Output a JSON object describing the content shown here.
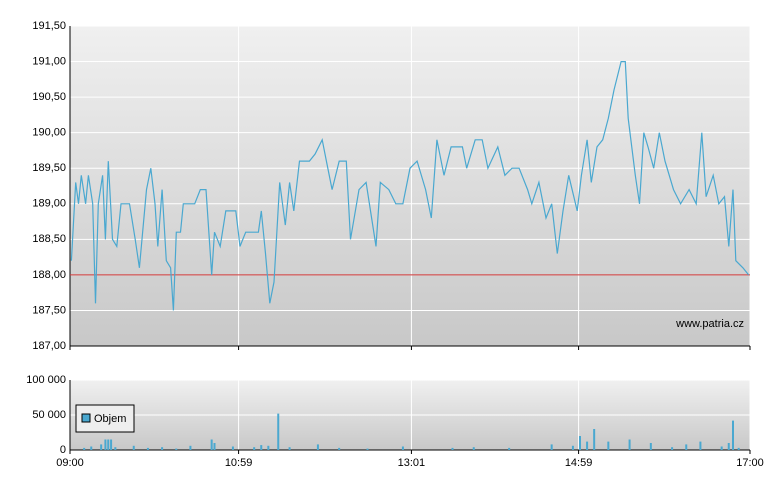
{
  "chart_data": [
    {
      "type": "line",
      "color": "#4aa8d0",
      "x": [
        "09:01",
        "09:04",
        "09:06",
        "09:08",
        "09:11",
        "09:13",
        "09:16",
        "09:18",
        "09:20",
        "09:23",
        "09:25",
        "09:27",
        "09:30",
        "09:33",
        "09:36",
        "09:42",
        "09:46",
        "09:49",
        "09:54",
        "09:57",
        "10:00",
        "10:02",
        "10:05",
        "10:08",
        "10:11",
        "10:13",
        "10:15",
        "10:18",
        "10:20",
        "10:28",
        "10:32",
        "10:36",
        "10:40",
        "10:42",
        "10:46",
        "10:50",
        "10:57",
        "11:00",
        "11:04",
        "11:13",
        "11:15",
        "11:18",
        "11:21",
        "11:24",
        "11:28",
        "11:32",
        "11:35",
        "11:38",
        "11:42",
        "11:49",
        "11:53",
        "11:58",
        "12:01",
        "12:05",
        "12:10",
        "12:15",
        "12:18",
        "12:24",
        "12:29",
        "12:36",
        "12:39",
        "12:45",
        "12:50",
        "12:55",
        "13:00",
        "13:05",
        "13:11",
        "13:15",
        "13:19",
        "13:24",
        "13:29",
        "13:37",
        "13:40",
        "13:46",
        "13:51",
        "13:55",
        "14:02",
        "14:07",
        "14:12",
        "14:17",
        "14:23",
        "14:26",
        "14:31",
        "14:36",
        "14:40",
        "14:44",
        "14:48",
        "14:52",
        "14:58",
        "15:01",
        "15:05",
        "15:08",
        "15:12",
        "15:16",
        "15:20",
        "15:24",
        "15:29",
        "15:32",
        "15:34",
        "15:39",
        "15:42",
        "15:45",
        "15:48",
        "15:52",
        "15:56",
        "16:00",
        "16:06",
        "16:11",
        "16:17",
        "16:22",
        "16:26",
        "16:29",
        "16:34",
        "16:38",
        "16:42",
        "16:45",
        "16:48",
        "16:50",
        "16:55",
        "16:59"
      ],
      "values": [
        188.2,
        189.3,
        189.0,
        189.4,
        189.0,
        189.4,
        189.0,
        187.6,
        189.0,
        189.4,
        188.5,
        189.6,
        188.5,
        188.4,
        189.0,
        189.0,
        188.5,
        188.1,
        189.2,
        189.5,
        189.0,
        188.4,
        189.2,
        188.2,
        188.1,
        187.5,
        188.6,
        188.6,
        189.0,
        189.0,
        189.2,
        189.2,
        188.0,
        188.6,
        188.4,
        188.9,
        188.9,
        188.4,
        188.6,
        188.6,
        188.9,
        188.3,
        187.6,
        187.9,
        189.3,
        188.7,
        189.3,
        188.9,
        189.6,
        189.6,
        189.7,
        189.9,
        189.6,
        189.2,
        189.6,
        189.6,
        188.5,
        189.2,
        189.3,
        188.4,
        189.3,
        189.2,
        189.0,
        189.0,
        189.5,
        189.6,
        189.2,
        188.8,
        189.9,
        189.4,
        189.8,
        189.8,
        189.5,
        189.9,
        189.9,
        189.5,
        189.8,
        189.4,
        189.5,
        189.5,
        189.2,
        189.0,
        189.3,
        188.8,
        189.0,
        188.3,
        188.9,
        189.4,
        188.9,
        189.4,
        189.9,
        189.3,
        189.8,
        189.9,
        190.2,
        190.6,
        191.0,
        191.0,
        190.2,
        189.4,
        189.0,
        190.0,
        189.8,
        189.5,
        190.0,
        189.6,
        189.2,
        189.0,
        189.2,
        189.0,
        190.0,
        189.1,
        189.4,
        189.0,
        189.1,
        188.4,
        189.2,
        188.2,
        188.1,
        188.0
      ],
      "ylim": [
        187,
        191.5
      ],
      "yticks": [
        {
          "value": 187,
          "label": "187,00"
        },
        {
          "value": 187.5,
          "label": "187,50"
        },
        {
          "value": 188,
          "label": "188,00"
        },
        {
          "value": 188.5,
          "label": "188,50"
        },
        {
          "value": 189,
          "label": "189,00"
        },
        {
          "value": 189.5,
          "label": "189,50"
        },
        {
          "value": 190,
          "label": "190,00"
        },
        {
          "value": 190.5,
          "label": "190,50"
        },
        {
          "value": 191,
          "label": "191,00"
        },
        {
          "value": 191.5,
          "label": "191,50"
        }
      ],
      "reference_line": 188,
      "reference_color": "#cc3333",
      "watermark": "www.patria.cz",
      "grid": true
    },
    {
      "type": "bar",
      "x": [
        "09:10",
        "09:15",
        "09:22",
        "09:25",
        "09:27",
        "09:29",
        "09:32",
        "09:45",
        "09:55",
        "10:05",
        "10:15",
        "10:25",
        "10:40",
        "10:42",
        "10:55",
        "11:10",
        "11:15",
        "11:20",
        "11:27",
        "11:35",
        "11:55",
        "12:10",
        "12:30",
        "12:55",
        "13:30",
        "13:45",
        "14:10",
        "14:40",
        "14:55",
        "15:00",
        "15:05",
        "15:10",
        "15:20",
        "15:35",
        "15:50",
        "16:05",
        "16:15",
        "16:25",
        "16:40",
        "16:45",
        "16:48",
        "16:52"
      ],
      "series": [
        {
          "name": "Objem",
          "color": "#4aa8d0",
          "values": [
            3000,
            5000,
            8000,
            15000,
            15000,
            15000,
            4000,
            6000,
            3000,
            4000,
            2000,
            6000,
            15000,
            10000,
            5000,
            4000,
            7000,
            6000,
            52000,
            4000,
            8000,
            3000,
            2000,
            5000,
            3000,
            4000,
            3000,
            8000,
            6000,
            20000,
            12000,
            30000,
            12000,
            15000,
            10000,
            4000,
            8000,
            12000,
            5000,
            10000,
            42000,
            3000
          ]
        }
      ],
      "ylim": [
        0,
        100000
      ],
      "yticks": [
        0,
        {
          "value": 50000,
          "label": "50 000"
        },
        {
          "value": 100000,
          "label": "100 000"
        }
      ],
      "xlim": [
        "09:00",
        "17:00"
      ],
      "xticks": [
        "09:00",
        "10:59",
        "13:01",
        "14:59",
        "17:00"
      ],
      "legend": "upper-left",
      "grid": true
    }
  ]
}
